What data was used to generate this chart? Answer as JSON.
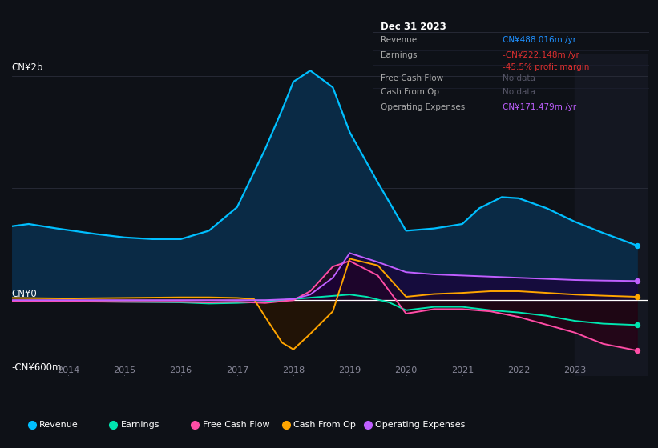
{
  "bg_color": "#0e1117",
  "plot_bg_color": "#0e1117",
  "grid_color": "#2a2d3a",
  "ylim": [
    -680,
    2200
  ],
  "xlim": [
    2013.0,
    2024.3
  ],
  "ylabel_top": "CN¥2b",
  "ylabel_bottom": "-CN¥600m",
  "ylabel_zero": "CN¥0",
  "x_tick_years": [
    2014,
    2015,
    2016,
    2017,
    2018,
    2019,
    2020,
    2021,
    2022,
    2023
  ],
  "zero_line_y": 0,
  "highlight_start": 2023.0,
  "revenue": {
    "x": [
      2013.0,
      2013.3,
      2013.8,
      2014.5,
      2015.0,
      2015.5,
      2016.0,
      2016.5,
      2017.0,
      2017.5,
      2017.8,
      2018.0,
      2018.3,
      2018.7,
      2019.0,
      2019.5,
      2020.0,
      2020.5,
      2021.0,
      2021.3,
      2021.7,
      2022.0,
      2022.5,
      2023.0,
      2023.5,
      2024.1
    ],
    "y": [
      660,
      680,
      640,
      590,
      560,
      545,
      545,
      620,
      830,
      1350,
      1700,
      1950,
      2050,
      1900,
      1500,
      1050,
      620,
      640,
      680,
      820,
      920,
      910,
      820,
      700,
      600,
      488
    ],
    "color": "#00bfff",
    "fill_color": "#0a2a45",
    "label": "Revenue"
  },
  "earnings": {
    "x": [
      2013.0,
      2014.0,
      2015.0,
      2016.0,
      2016.5,
      2017.0,
      2017.5,
      2018.0,
      2018.5,
      2019.0,
      2019.3,
      2019.7,
      2020.0,
      2020.5,
      2021.0,
      2021.5,
      2022.0,
      2022.5,
      2023.0,
      2023.5,
      2024.1
    ],
    "y": [
      -10,
      -10,
      -15,
      -20,
      -30,
      -25,
      -15,
      10,
      30,
      50,
      30,
      -20,
      -90,
      -60,
      -60,
      -90,
      -110,
      -140,
      -185,
      -210,
      -222
    ],
    "color": "#00e5b0",
    "fill_color": "#00180d",
    "label": "Earnings"
  },
  "free_cash_flow": {
    "x": [
      2013.0,
      2014.0,
      2015.0,
      2016.0,
      2016.5,
      2017.0,
      2017.5,
      2018.0,
      2018.3,
      2018.7,
      2019.0,
      2019.5,
      2020.0,
      2020.5,
      2021.0,
      2021.5,
      2022.0,
      2022.5,
      2023.0,
      2023.5,
      2024.1
    ],
    "y": [
      -10,
      -12,
      -15,
      -15,
      -20,
      -15,
      -25,
      0,
      80,
      300,
      350,
      220,
      -120,
      -80,
      -80,
      -100,
      -150,
      -220,
      -290,
      -390,
      -450
    ],
    "color": "#ff4da6",
    "fill_color": "#2a0015",
    "label": "Free Cash Flow"
  },
  "cash_from_op": {
    "x": [
      2013.0,
      2014.0,
      2015.0,
      2016.0,
      2016.5,
      2017.0,
      2017.3,
      2017.5,
      2017.8,
      2018.0,
      2018.3,
      2018.7,
      2019.0,
      2019.5,
      2020.0,
      2020.5,
      2021.0,
      2021.5,
      2022.0,
      2022.5,
      2023.0,
      2023.5,
      2024.1
    ],
    "y": [
      20,
      15,
      20,
      25,
      25,
      20,
      10,
      -150,
      -380,
      -440,
      -300,
      -100,
      370,
      310,
      30,
      55,
      65,
      80,
      80,
      65,
      50,
      40,
      30
    ],
    "color": "#ffa500",
    "fill_color": "#2a1500",
    "label": "Cash From Op"
  },
  "operating_expenses": {
    "x": [
      2013.0,
      2014.0,
      2015.0,
      2016.0,
      2017.0,
      2017.5,
      2018.0,
      2018.3,
      2018.7,
      2019.0,
      2019.5,
      2020.0,
      2020.5,
      2021.0,
      2021.5,
      2022.0,
      2022.5,
      2023.0,
      2023.5,
      2024.1
    ],
    "y": [
      0,
      0,
      0,
      0,
      0,
      0,
      10,
      50,
      200,
      420,
      340,
      250,
      230,
      220,
      210,
      200,
      190,
      180,
      175,
      171
    ],
    "color": "#bf5fff",
    "fill_color": "#1a003a",
    "label": "Operating Expenses"
  },
  "infobox": {
    "title": "Dec 31 2023",
    "title_color": "#ffffff",
    "bg_color": "#0a0c10",
    "border_color": "#2a2d3a",
    "rows": [
      {
        "label": "Revenue",
        "value": "CN¥488.016m /yr",
        "value_color": "#1e90ff",
        "sub": null,
        "sub_color": null
      },
      {
        "label": "Earnings",
        "value": "-CN¥222.148m /yr",
        "value_color": "#e03030",
        "sub": "-45.5% profit margin",
        "sub_color": "#e03030"
      },
      {
        "label": "Free Cash Flow",
        "value": "No data",
        "value_color": "#555566",
        "sub": null,
        "sub_color": null
      },
      {
        "label": "Cash From Op",
        "value": "No data",
        "value_color": "#555566",
        "sub": null,
        "sub_color": null
      },
      {
        "label": "Operating Expenses",
        "value": "CN¥171.479m /yr",
        "value_color": "#bf5fff",
        "sub": null,
        "sub_color": null
      }
    ]
  },
  "legend": [
    {
      "label": "Revenue",
      "color": "#00bfff"
    },
    {
      "label": "Earnings",
      "color": "#00e5b0"
    },
    {
      "label": "Free Cash Flow",
      "color": "#ff4da6"
    },
    {
      "label": "Cash From Op",
      "color": "#ffa500"
    },
    {
      "label": "Operating Expenses",
      "color": "#bf5fff"
    }
  ]
}
